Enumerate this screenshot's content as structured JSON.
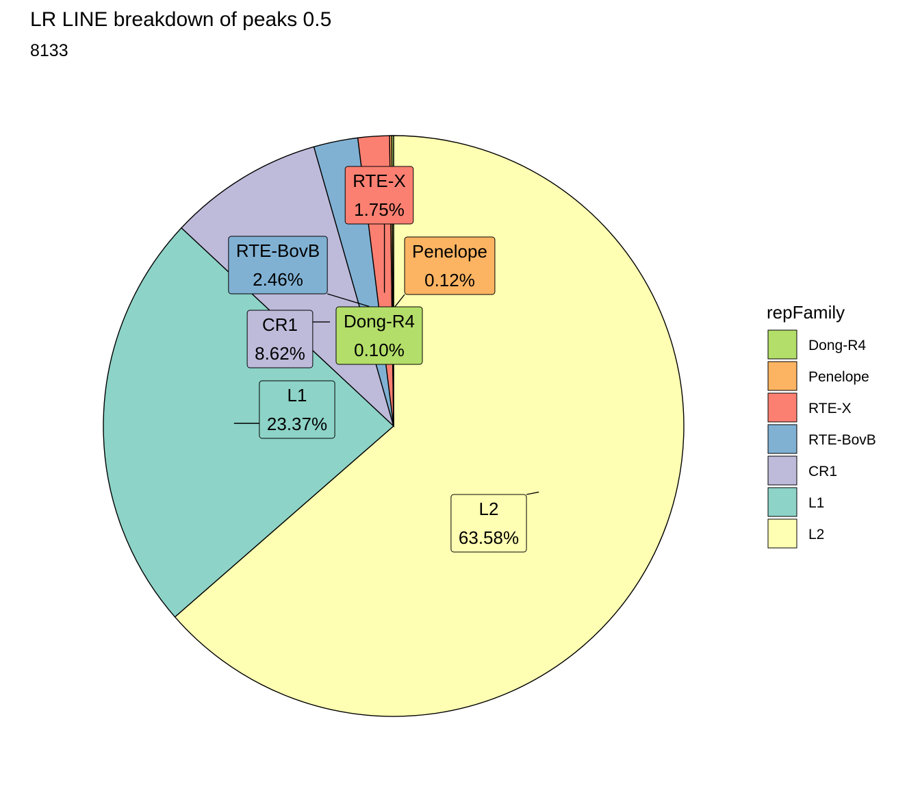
{
  "title": "LR LINE breakdown of peaks 0.5",
  "subtitle": "8133",
  "chart_data": {
    "type": "pie",
    "legend_title": "repFamily",
    "legend_position": "right",
    "slices": [
      {
        "name": "L2",
        "value": 63.58,
        "label": "63.58%",
        "color": "#FFFFB3"
      },
      {
        "name": "L1",
        "value": 23.37,
        "label": "23.37%",
        "color": "#8DD3C7"
      },
      {
        "name": "CR1",
        "value": 8.62,
        "label": "8.62%",
        "color": "#BEBADA"
      },
      {
        "name": "RTE-BovB",
        "value": 2.46,
        "label": "2.46%",
        "color": "#80B1D3"
      },
      {
        "name": "RTE-X",
        "value": 1.75,
        "label": "1.75%",
        "color": "#FB8072"
      },
      {
        "name": "Penelope",
        "value": 0.12,
        "label": "0.12%",
        "color": "#FDB462"
      },
      {
        "name": "Dong-R4",
        "value": 0.1,
        "label": "0.10%",
        "color": "#B3DE69"
      }
    ],
    "legend_order": [
      "Dong-R4",
      "Penelope",
      "RTE-X",
      "RTE-BovB",
      "CR1",
      "L1",
      "L2"
    ]
  }
}
